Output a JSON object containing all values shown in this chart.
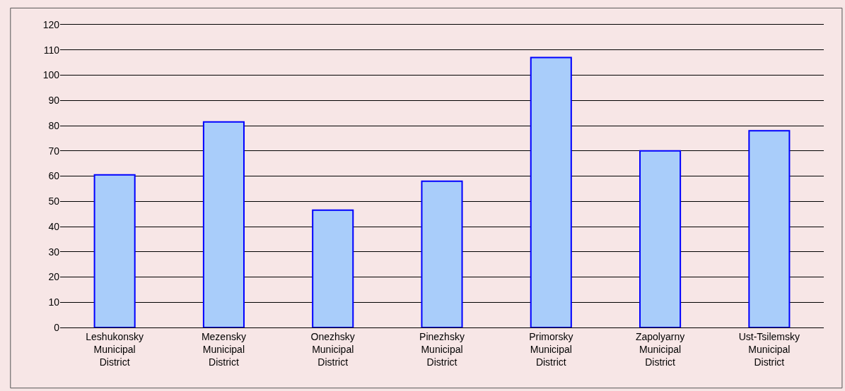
{
  "chart_data": {
    "type": "bar",
    "categories": [
      "Leshukonsky Municipal District",
      "Mezensky Municipal District",
      "Onezhsky Municipal District",
      "Pinezhsky Municipal District",
      "Primorsky Municipal District",
      "Zapolyarny Municipal District",
      "Ust-Tsilemsky Municipal District"
    ],
    "values": [
      60.5,
      81.5,
      46.5,
      58,
      107,
      70,
      78
    ],
    "color": "#a9cdfa",
    "ylim": [
      0,
      120
    ],
    "yticks": [
      0,
      10,
      20,
      30,
      40,
      50,
      60,
      70,
      80,
      90,
      100,
      110,
      120
    ],
    "grid": "y"
  }
}
